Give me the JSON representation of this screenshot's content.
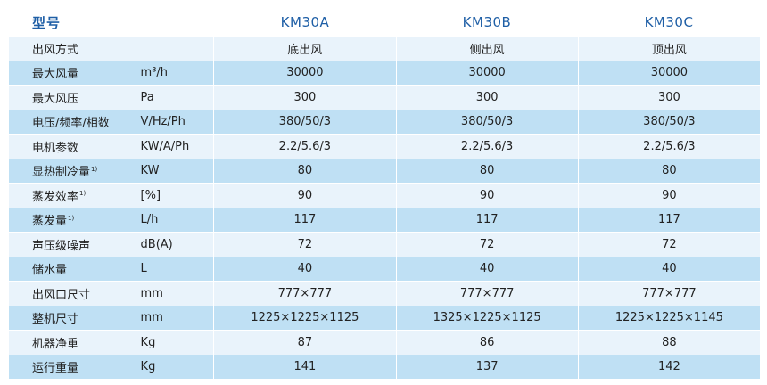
{
  "header": {
    "param_label": "型号",
    "models": [
      "KM30A",
      "KM30B",
      "KM30C"
    ]
  },
  "rows": [
    {
      "param": "出风方式",
      "note": "",
      "unit": "",
      "values": [
        "底出风",
        "侧出风",
        "顶出风"
      ]
    },
    {
      "param": "最大风量",
      "note": "",
      "unit": "m³/h",
      "values": [
        "30000",
        "30000",
        "30000"
      ]
    },
    {
      "param": "最大风压",
      "note": "",
      "unit": "Pa",
      "values": [
        "300",
        "300",
        "300"
      ]
    },
    {
      "param": "电压/频率/相数",
      "note": "",
      "unit": "V/Hz/Ph",
      "values": [
        "380/50/3",
        "380/50/3",
        "380/50/3"
      ]
    },
    {
      "param": "电机参数",
      "note": "",
      "unit": "KW/A/Ph",
      "values": [
        "2.2/5.6/3",
        "2.2/5.6/3",
        "2.2/5.6/3"
      ]
    },
    {
      "param": "显热制冷量",
      "note": "1)",
      "unit": "KW",
      "values": [
        "80",
        "80",
        "80"
      ]
    },
    {
      "param": "蒸发效率",
      "note": "1)",
      "unit": "[%]",
      "values": [
        "90",
        "90",
        "90"
      ]
    },
    {
      "param": "蒸发量",
      "note": "1)",
      "unit": "L/h",
      "values": [
        "117",
        "117",
        "117"
      ]
    },
    {
      "param": "声压级噪声",
      "note": "",
      "unit": "dB(A)",
      "values": [
        "72",
        "72",
        "72"
      ]
    },
    {
      "param": "储水量",
      "note": "",
      "unit": "L",
      "values": [
        "40",
        "40",
        "40"
      ]
    },
    {
      "param": "出风口尺寸",
      "note": "",
      "unit": "mm",
      "values": [
        "777×777",
        "777×777",
        "777×777"
      ]
    },
    {
      "param": "整机尺寸",
      "note": "",
      "unit": "mm",
      "values": [
        "1225×1225×1125",
        "1325×1225×1125",
        "1225×1225×1145"
      ]
    },
    {
      "param": "机器净重",
      "note": "",
      "unit": "Kg",
      "values": [
        "87",
        "86",
        "88"
      ]
    },
    {
      "param": "运行重量",
      "note": "",
      "unit": "Kg",
      "values": [
        "141",
        "137",
        "142"
      ]
    }
  ],
  "colors": {
    "header_text": "#1f5fa6",
    "row_light": "#e9f3fb",
    "row_dark": "#bfe0f4"
  }
}
